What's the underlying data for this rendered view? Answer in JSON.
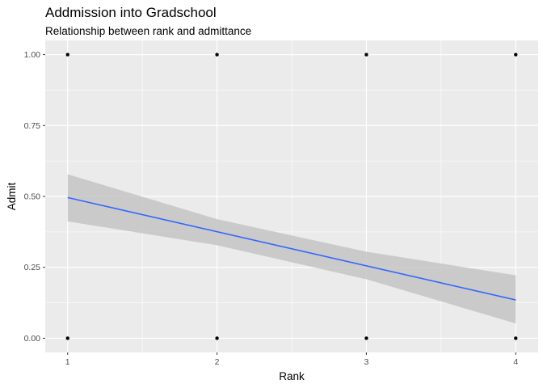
{
  "chart_data": {
    "type": "scatter",
    "title": "Addmission into Gradschool",
    "subtitle": "Relationship between rank and admittance",
    "xlabel": "Rank",
    "ylabel": "Admit",
    "x_ticks": [
      "1",
      "2",
      "3",
      "4"
    ],
    "y_ticks": [
      "0.00",
      "0.25",
      "0.50",
      "0.75",
      "1.00"
    ],
    "xlim": [
      0.85,
      4.15
    ],
    "ylim": [
      -0.05,
      1.05
    ],
    "grid": true,
    "legend": "none",
    "points": [
      {
        "x": 1,
        "y": 1
      },
      {
        "x": 2,
        "y": 1
      },
      {
        "x": 3,
        "y": 1
      },
      {
        "x": 4,
        "y": 1
      },
      {
        "x": 1,
        "y": 0
      },
      {
        "x": 2,
        "y": 0
      },
      {
        "x": 3,
        "y": 0
      },
      {
        "x": 4,
        "y": 0
      }
    ],
    "fit_line": {
      "x": [
        1,
        4
      ],
      "y": [
        0.496,
        0.135
      ]
    },
    "confidence_band": {
      "x": [
        1,
        2,
        3,
        4
      ],
      "upper": [
        0.578,
        0.42,
        0.305,
        0.222
      ],
      "lower": [
        0.412,
        0.328,
        0.208,
        0.052
      ]
    },
    "colors": {
      "panel": "#ebebeb",
      "grid": "#ffffff",
      "line": "#3366ff",
      "band": "#c4c4c4",
      "point": "#000000"
    }
  }
}
